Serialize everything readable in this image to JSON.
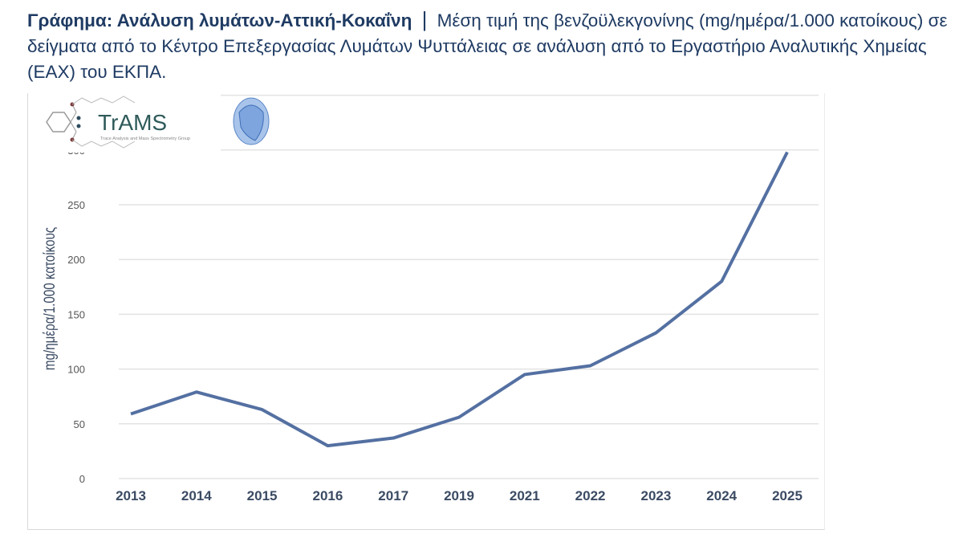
{
  "title": {
    "bold": "Γράφημα: Ανάλυση λυμάτων-Αττική-Κοκαΐνη",
    "separator": "|",
    "text": "Μέση τιμή της βενζοϋλεκγονίνης (mg/ημέρα/1.000 κατοίκους) σε δείγματα από το Κέντρο Επεξεργασίας Λυμάτων Ψυττάλειας σε ανάλυση από το Εργαστήριο Αναλυτικής Χημείας (ΕΑΧ) του ΕΚΠΑ."
  },
  "logo": {
    "name": "TrAMS",
    "subtitle": "Trace Analysis and Mass Spectrometry Group"
  },
  "chart_data": {
    "type": "line",
    "title": "",
    "xlabel": "",
    "ylabel": "mg/ημέρα/1.000 κατοίκους",
    "categories": [
      "2013",
      "2014",
      "2015",
      "2016",
      "2017",
      "2019",
      "2021",
      "2022",
      "2023",
      "2024",
      "2025"
    ],
    "values": [
      59,
      79,
      63,
      30,
      37,
      56,
      95,
      103,
      133,
      180,
      298
    ],
    "yticks": [
      0,
      50,
      100,
      150,
      200,
      250,
      300,
      350
    ],
    "ylim": [
      0,
      350
    ],
    "grid": true,
    "legend": "none",
    "line_color": "#5470a2"
  }
}
